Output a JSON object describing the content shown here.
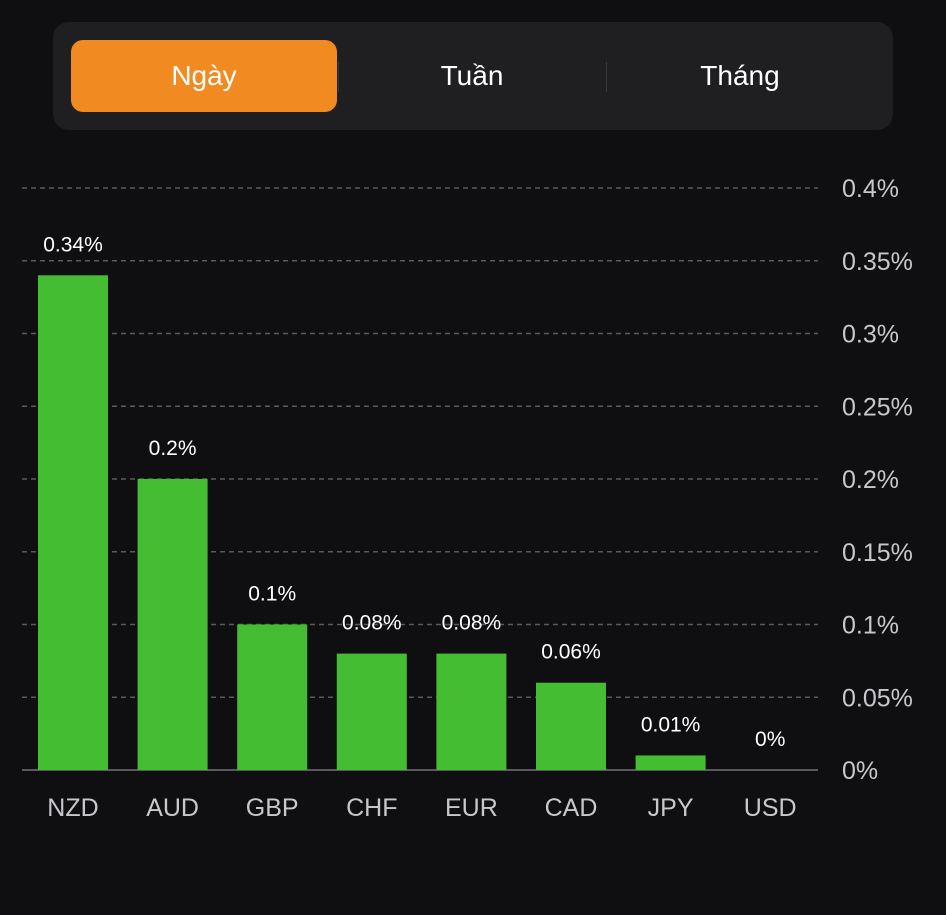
{
  "tabs": [
    {
      "label": "Ngày",
      "active": true
    },
    {
      "label": "Tuần",
      "active": false
    },
    {
      "label": "Tháng",
      "active": false
    }
  ],
  "colors": {
    "background": "#0f0f11",
    "segment_bg": "#1f1f22",
    "accent": "#f28a22",
    "bar": "#44bd32",
    "grid": "#5a5a5e",
    "axis_text": "#c8c8cc",
    "label_text": "#ffffff"
  },
  "chart_data": {
    "type": "bar",
    "categories": [
      "NZD",
      "AUD",
      "GBP",
      "CHF",
      "EUR",
      "CAD",
      "JPY",
      "USD"
    ],
    "values": [
      0.34,
      0.2,
      0.1,
      0.08,
      0.08,
      0.06,
      0.01,
      0
    ],
    "value_labels": [
      "0.34%",
      "0.2%",
      "0.1%",
      "0.08%",
      "0.08%",
      "0.06%",
      "0.01%",
      "0%"
    ],
    "y_ticks": [
      0,
      0.05,
      0.1,
      0.15,
      0.2,
      0.25,
      0.3,
      0.35,
      0.4
    ],
    "y_tick_labels": [
      "0%",
      "0.05%",
      "0.1%",
      "0.15%",
      "0.2%",
      "0.25%",
      "0.3%",
      "0.35%",
      "0.4%"
    ],
    "ylim": [
      0,
      0.4
    ],
    "y_axis_side": "right",
    "grid": true,
    "grid_style": "dashed",
    "title": "",
    "xlabel": "",
    "ylabel": ""
  }
}
